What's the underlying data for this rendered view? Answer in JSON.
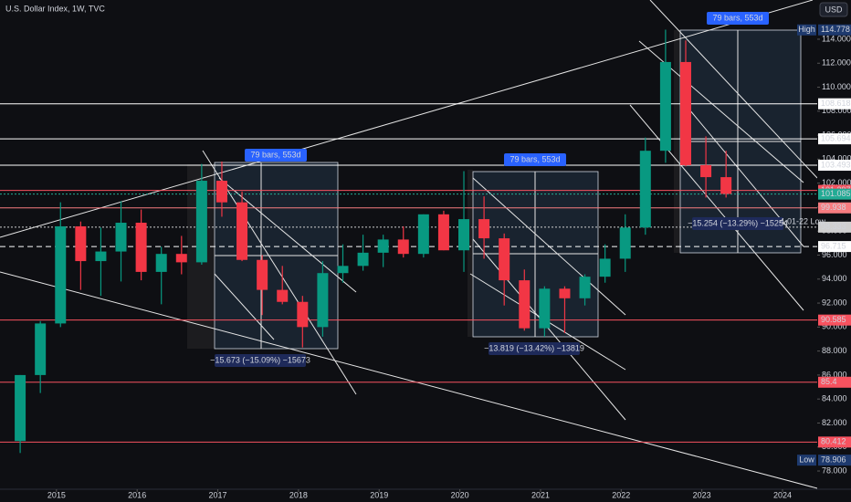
{
  "chart_data": {
    "type": "candlestick",
    "title": "U.S. Dollar Index, 1W, TVC",
    "currency": "USD",
    "up_color": "#089981",
    "down_color": "#f23645",
    "x": [
      2014.55,
      2014.8,
      2015.05,
      2015.3,
      2015.55,
      2015.8,
      2016.05,
      2016.3,
      2016.55,
      2016.8,
      2017.05,
      2017.3,
      2017.55,
      2017.8,
      2018.05,
      2018.3,
      2018.55,
      2018.8,
      2019.05,
      2019.3,
      2019.55,
      2019.8,
      2020.05,
      2020.3,
      2020.55,
      2020.8,
      2021.05,
      2021.3,
      2021.55,
      2021.8,
      2022.05,
      2022.3,
      2022.55,
      2022.8,
      2023.05,
      2023.3
    ],
    "open": [
      80.5,
      86.0,
      90.3,
      98.4,
      95.5,
      96.3,
      98.7,
      94.6,
      96.1,
      95.4,
      102.2,
      100.4,
      95.6,
      93.1,
      92.1,
      90.0,
      94.5,
      95.1,
      96.2,
      97.3,
      96.1,
      99.4,
      96.4,
      99.0,
      97.4,
      93.9,
      89.9,
      93.2,
      92.4,
      94.2,
      95.7,
      98.3,
      104.7,
      112.1,
      103.5,
      102.5
    ],
    "high": [
      86.0,
      90.5,
      100.4,
      98.8,
      98.3,
      100.5,
      99.8,
      96.7,
      97.6,
      103.6,
      103.8,
      101.3,
      96.0,
      95.1,
      92.6,
      95.5,
      96.9,
      97.7,
      97.7,
      98.4,
      99.4,
      99.7,
      103.0,
      100.9,
      97.8,
      94.8,
      93.4,
      93.4,
      94.4,
      96.9,
      99.4,
      105.8,
      114.8,
      113.9,
      105.9,
      104.7
    ],
    "low": [
      79.5,
      84.5,
      90.0,
      93.1,
      92.6,
      93.8,
      93.9,
      91.9,
      94.4,
      95.2,
      99.2,
      95.5,
      91.0,
      91.9,
      88.3,
      89.2,
      93.7,
      94.7,
      95.0,
      95.8,
      95.8,
      96.4,
      94.6,
      95.7,
      91.8,
      89.7,
      89.2,
      89.5,
      91.8,
      93.7,
      94.6,
      97.7,
      103.7,
      103.4,
      100.8,
      100.8
    ],
    "close": [
      86.0,
      90.3,
      98.4,
      95.5,
      96.3,
      98.7,
      94.6,
      96.1,
      95.4,
      102.2,
      100.4,
      95.6,
      93.1,
      92.1,
      90.0,
      94.5,
      95.1,
      96.2,
      97.3,
      96.1,
      99.4,
      96.4,
      99.0,
      97.4,
      93.9,
      89.9,
      93.2,
      92.4,
      94.2,
      95.7,
      98.3,
      104.7,
      112.1,
      103.5,
      102.5,
      101.1
    ],
    "xlim": [
      2014.3,
      2024.43
    ],
    "xticks": [
      2015,
      2016,
      2017,
      2018,
      2019,
      2020,
      2021,
      2022,
      2023,
      2024
    ],
    "ylim": [
      76.48,
      117.27
    ],
    "yticks": [
      {
        "value": 78,
        "label": "78.000"
      },
      {
        "value": 80,
        "label": "80.000"
      },
      {
        "value": 82,
        "label": "82.000"
      },
      {
        "value": 84,
        "label": "84.000"
      },
      {
        "value": 86,
        "label": "86.000"
      },
      {
        "value": 88,
        "label": "88.000"
      },
      {
        "value": 90,
        "label": "90.000"
      },
      {
        "value": 92,
        "label": "92.000"
      },
      {
        "value": 94,
        "label": "94.000"
      },
      {
        "value": 96,
        "label": "96.000"
      },
      {
        "value": 98,
        "label": "98.000"
      },
      {
        "value": 100,
        "label": "100.000"
      },
      {
        "value": 102,
        "label": "102.000"
      },
      {
        "value": 104,
        "label": "104.000"
      },
      {
        "value": 106,
        "label": "106.000"
      },
      {
        "value": 108,
        "label": "108.000"
      },
      {
        "value": 110,
        "label": "110.000"
      },
      {
        "value": 112,
        "label": "112.000"
      },
      {
        "value": 114,
        "label": "114.000"
      }
    ],
    "price_levels": [
      {
        "value": 114.778,
        "color": "#1e3a6e",
        "style": "none",
        "tag": "High"
      },
      {
        "value": 108.618,
        "color": "#ffffff",
        "style": "solid"
      },
      {
        "value": 105.694,
        "color": "#ffffff",
        "style": "solid"
      },
      {
        "value": 103.493,
        "color": "#ffffff",
        "style": "solid"
      },
      {
        "value": 101.397,
        "color": "#f7525f",
        "style": "solid"
      },
      {
        "value": 101.085,
        "color": "#22ab94",
        "style": "dotted"
      },
      {
        "value": 99.938,
        "color": "#f77c80",
        "style": "solid"
      },
      {
        "value": 98.333,
        "color": "#d0d0d0",
        "style": "dotted"
      },
      {
        "value": 96.715,
        "color": "#ffffff",
        "style": "dashed"
      },
      {
        "value": 90.585,
        "color": "#f7525f",
        "style": "solid"
      },
      {
        "value": 85.4,
        "color": "#f7525f",
        "style": "solid"
      },
      {
        "value": 80.412,
        "color": "#f7525f",
        "style": "solid"
      },
      {
        "value": 78.906,
        "color": "#1e3a6e",
        "style": "none",
        "tag": "Low"
      }
    ],
    "measurements": [
      {
        "bars": "79 bars, 553d",
        "change": "−15.673 (−15.09%) −15673"
      },
      {
        "bars": "79 bars, 553d",
        "change": "−13.819 (−13.42%) −13819"
      },
      {
        "bars": "79 bars, 553d",
        "change": "−15.254 (−13.29%) −15254"
      }
    ],
    "annotation": "4-01-22 Low"
  }
}
